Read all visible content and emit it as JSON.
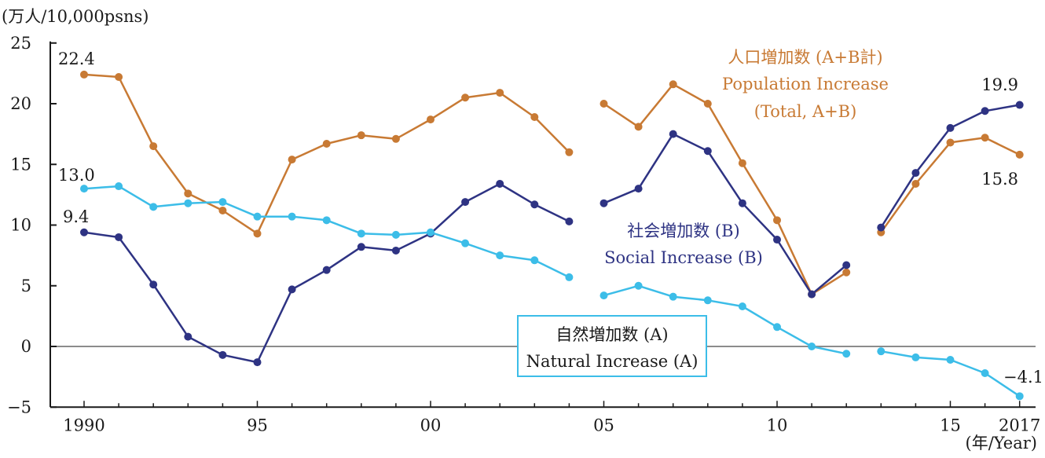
{
  "chart_data": {
    "type": "line",
    "y_unit_label": "(万人/10,000psns)",
    "x_unit_label": "(年/Year)",
    "ylim": [
      -5,
      25
    ],
    "y_ticks": [
      25,
      20,
      15,
      10,
      5,
      0,
      -5
    ],
    "x_range": [
      1990,
      2017
    ],
    "x_ticks": [
      {
        "x": 1990,
        "label": "1990"
      },
      {
        "x": 1995,
        "label": "95"
      },
      {
        "x": 2000,
        "label": "00"
      },
      {
        "x": 2005,
        "label": "05"
      },
      {
        "x": 2010,
        "label": "10"
      },
      {
        "x": 2015,
        "label": "15"
      },
      {
        "x": 2017,
        "label": "2017"
      }
    ],
    "zero_line": true,
    "segments": [
      [
        1990,
        2004
      ],
      [
        2005,
        2012
      ],
      [
        2013,
        2017
      ]
    ],
    "series": [
      {
        "key": "population",
        "name_ja": "人口増加数 (A+B計)",
        "name_en": "Population Increase",
        "name_en2": "(Total, A+B)",
        "color": "#c87a34",
        "x": [
          1990,
          1991,
          1992,
          1993,
          1994,
          1995,
          1996,
          1997,
          1998,
          1999,
          2000,
          2001,
          2002,
          2003,
          2004,
          2005,
          2006,
          2007,
          2008,
          2009,
          2010,
          2011,
          2012,
          2013,
          2014,
          2015,
          2016,
          2017
        ],
        "y": [
          22.4,
          22.2,
          16.5,
          12.6,
          11.2,
          9.3,
          15.4,
          16.7,
          17.4,
          17.1,
          18.7,
          20.5,
          20.9,
          18.9,
          16.0,
          20.0,
          18.1,
          21.6,
          20.0,
          15.1,
          10.4,
          4.3,
          6.1,
          9.4,
          13.4,
          16.8,
          17.2,
          15.8
        ]
      },
      {
        "key": "social",
        "name_ja": "社会増加数 (B)",
        "name_en": "Social Increase (B)",
        "color": "#2e3383",
        "x": [
          1990,
          1991,
          1992,
          1993,
          1994,
          1995,
          1996,
          1997,
          1998,
          1999,
          2000,
          2001,
          2002,
          2003,
          2004,
          2005,
          2006,
          2007,
          2008,
          2009,
          2010,
          2011,
          2012,
          2013,
          2014,
          2015,
          2016,
          2017
        ],
        "y": [
          9.4,
          9.0,
          5.1,
          0.8,
          -0.7,
          -1.3,
          4.7,
          6.3,
          8.2,
          7.9,
          9.3,
          11.9,
          13.4,
          11.7,
          10.3,
          11.8,
          13.0,
          17.5,
          16.1,
          11.8,
          8.8,
          4.3,
          6.7,
          9.8,
          14.3,
          18.0,
          19.4,
          19.9
        ]
      },
      {
        "key": "natural",
        "name_ja": "自然増加数 (A)",
        "name_en": "Natural Increase (A)",
        "color": "#3cbde8",
        "x": [
          1990,
          1991,
          1992,
          1993,
          1994,
          1995,
          1996,
          1997,
          1998,
          1999,
          2000,
          2001,
          2002,
          2003,
          2004,
          2005,
          2006,
          2007,
          2008,
          2009,
          2010,
          2011,
          2012,
          2013,
          2014,
          2015,
          2016,
          2017
        ],
        "y": [
          13.0,
          13.2,
          11.5,
          11.8,
          11.9,
          10.7,
          10.7,
          10.4,
          9.3,
          9.2,
          9.4,
          8.5,
          7.5,
          7.1,
          5.7,
          4.2,
          5.0,
          4.1,
          3.8,
          3.3,
          1.6,
          0.0,
          -0.6,
          -0.4,
          -0.9,
          -1.1,
          -2.2,
          -4.1
        ]
      }
    ],
    "end_labels": [
      {
        "key": "population_start",
        "text": "22.4"
      },
      {
        "key": "natural_start",
        "text": "13.0"
      },
      {
        "key": "social_start",
        "text": "9.4"
      },
      {
        "key": "social_end",
        "text": "19.9"
      },
      {
        "key": "population_end",
        "text": "15.8"
      },
      {
        "key": "natural_end",
        "text": "−4.1"
      }
    ],
    "colors": {
      "axis": "#1a1a1a",
      "zero_line": "#8c8c8c",
      "natural_box_border": "#3cbde8"
    }
  }
}
